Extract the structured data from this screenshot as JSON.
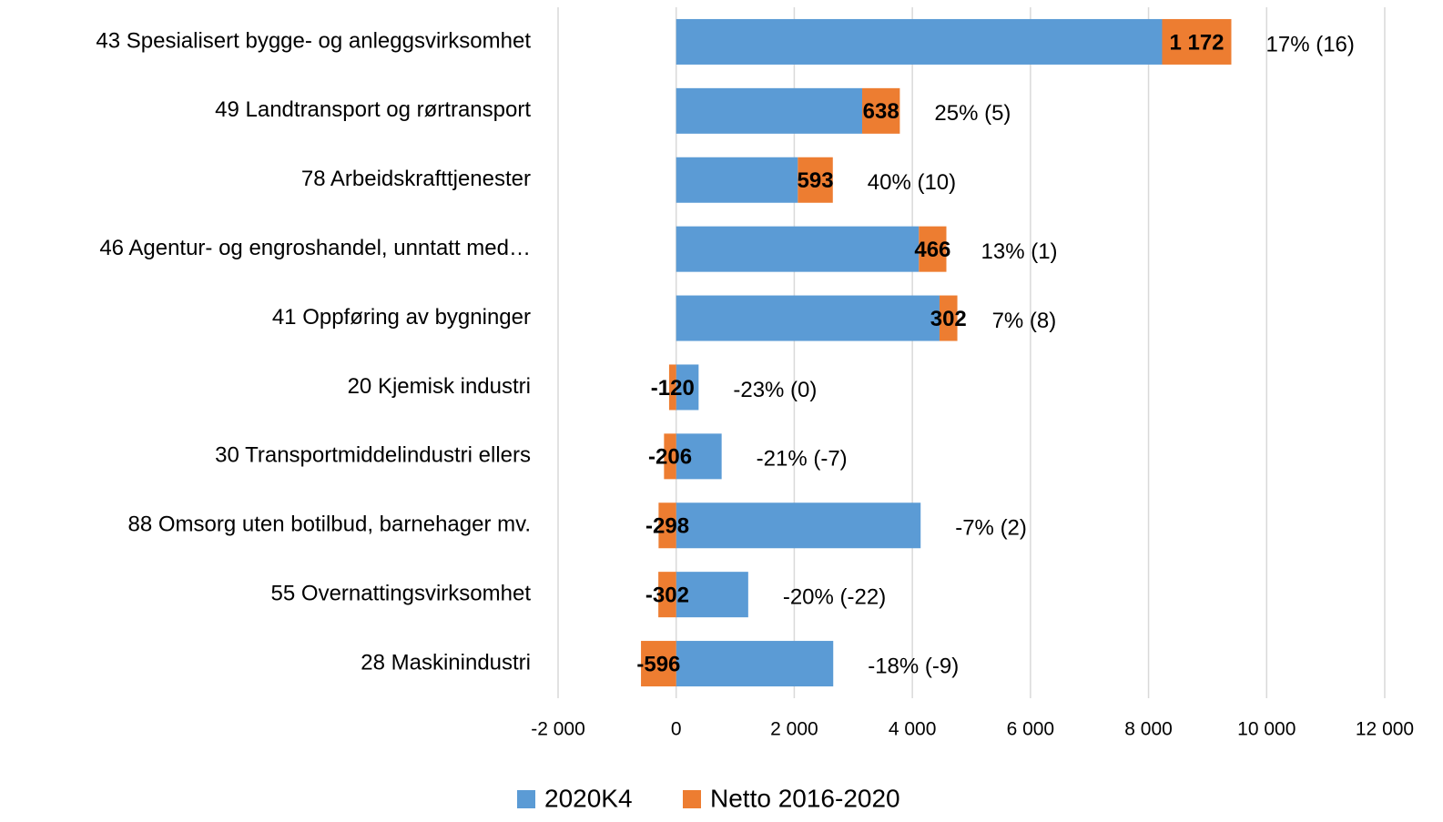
{
  "chart_data": {
    "type": "bar",
    "orientation": "horizontal",
    "stacked": true,
    "grid": true,
    "legend": "bottom",
    "categories": [
      "43 Spesialisert bygge- og anleggsvirksomhet",
      "49 Landtransport og rørtransport",
      "78 Arbeidskrafttjenester",
      "46 Agentur- og engroshandel, unntatt med…",
      "41 Oppføring av bygninger",
      "20 Kjemisk industri",
      "30 Transportmiddelindustri ellers",
      "88 Omsorg uten botilbud, barnehager mv.",
      "55 Overnattingsvirksomhet",
      "28 Maskinindustri"
    ],
    "series": [
      {
        "name": "2020K4",
        "color": "#5b9bd5",
        "values": [
          8230,
          3150,
          2060,
          4110,
          4460,
          380,
          770,
          4140,
          1220,
          2660
        ]
      },
      {
        "name": "Netto 2016-2020",
        "color": "#ed7d31",
        "values": [
          1172,
          638,
          593,
          466,
          302,
          -120,
          -206,
          -298,
          -302,
          -596
        ],
        "value_labels": [
          "1 172",
          "638",
          "593",
          "466",
          "302",
          "-120",
          "-206",
          "-298",
          "-302",
          "-596"
        ]
      }
    ],
    "annotations": [
      "17% (16)",
      "25% (5)",
      "40% (10)",
      "13% (1)",
      "7% (8)",
      "-23% (0)",
      "-21% (-7)",
      "-7% (2)",
      "-20% (-22)",
      "-18% (-9)"
    ],
    "xlim": [
      -2000,
      12000
    ],
    "xticks": [
      {
        "value": -2000,
        "label": "-2 000"
      },
      0,
      {
        "value": 2000,
        "label": "2 000"
      },
      {
        "value": 4000,
        "label": "4 000"
      },
      {
        "value": 6000,
        "label": "6 000"
      },
      {
        "value": 8000,
        "label": "8 000"
      },
      {
        "value": 10000,
        "label": "10 000"
      },
      {
        "value": 12000,
        "label": "12 000"
      }
    ]
  }
}
